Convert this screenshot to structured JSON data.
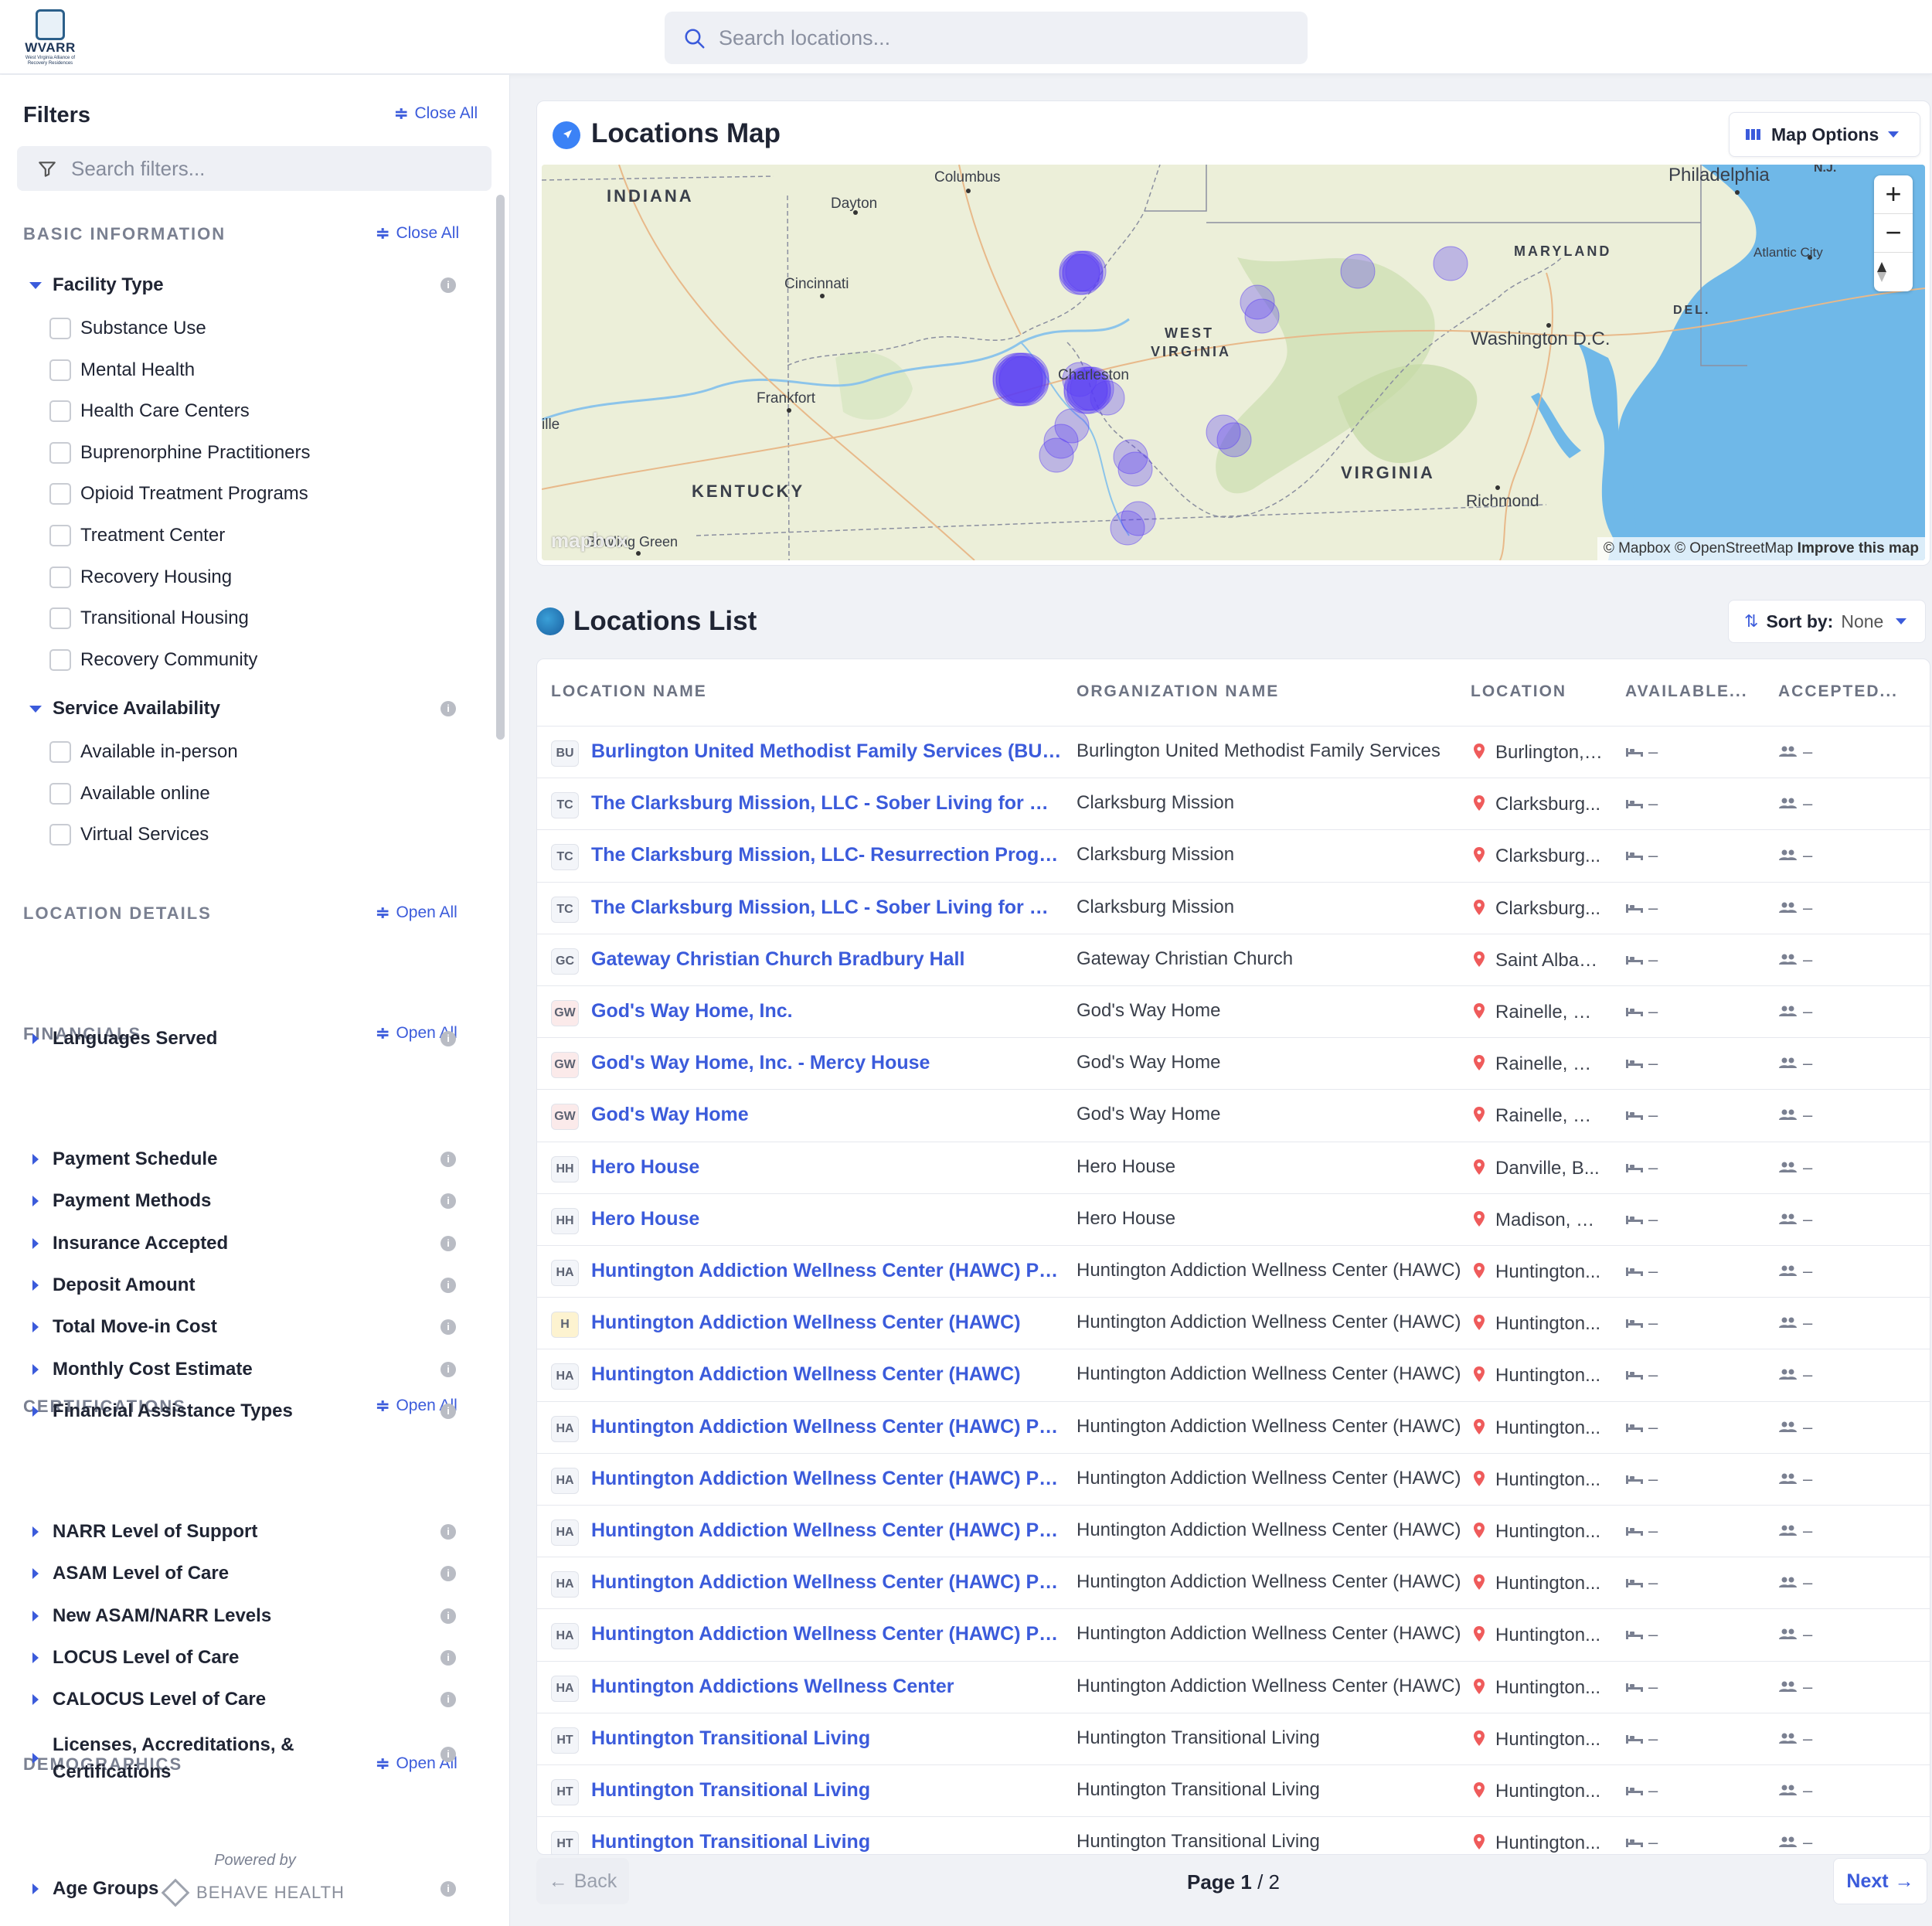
{
  "app": {
    "logo_text": "WVARR",
    "logo_subtext": "West Virginia Alliance of Recovery Residences"
  },
  "search": {
    "placeholder": "Search locations..."
  },
  "sidebar": {
    "title": "Filters",
    "close_all": "Close All",
    "filter_search_placeholder": "Search filters...",
    "sections": {
      "basic": {
        "label": "BASIC INFORMATION",
        "action": "Close All"
      },
      "location": {
        "label": "LOCATION DETAILS",
        "action": "Open All"
      },
      "financials": {
        "label": "FINANCIALS",
        "action": "Open All"
      },
      "certifications": {
        "label": "CERTIFICATIONS",
        "action": "Open All"
      },
      "demographics": {
        "label": "DEMOGRAPHICS",
        "action": "Open All"
      }
    },
    "facility_type": {
      "label": "Facility Type",
      "options": [
        "Substance Use",
        "Mental Health",
        "Health Care Centers",
        "Buprenorphine Practitioners",
        "Opioid Treatment Programs",
        "Treatment Center",
        "Recovery Housing",
        "Transitional Housing",
        "Recovery Community"
      ]
    },
    "service_availability": {
      "label": "Service Availability",
      "options": [
        "Available in-person",
        "Available online",
        "Virtual Services"
      ]
    },
    "location_groups": [
      "Languages Served"
    ],
    "financial_groups": [
      "Payment Schedule",
      "Payment Methods",
      "Insurance Accepted",
      "Deposit Amount",
      "Total Move-in Cost",
      "Monthly Cost Estimate",
      "Financial Assistance Types"
    ],
    "certification_groups": [
      "NARR Level of Support",
      "ASAM Level of Care",
      "New ASAM/NARR Levels",
      "LOCUS Level of Care",
      "CALOCUS Level of Care",
      "Licenses, Accreditations, & Certifications"
    ],
    "demographic_groups": [
      "Age Groups"
    ],
    "powered_by": "Powered by",
    "brand": "BEHAVE HEALTH"
  },
  "map": {
    "title": "Locations Map",
    "options_label": "Map Options",
    "zoom_in": "+",
    "zoom_out": "−",
    "attribution_1": "© Mapbox",
    "attribution_2": "© OpenStreetMap",
    "attribution_3": "Improve this map",
    "logo": "mapbox",
    "states": [
      "INDIANA",
      "KENTUCKY",
      "WEST",
      "VIRGINIA",
      "VIRGINIA",
      "MARYLAND",
      "DEL."
    ],
    "cities": [
      "Columbus",
      "Dayton",
      "Cincinnati",
      "Frankfort",
      "Charleston",
      "Philadelphia",
      "N.J.",
      "Atlantic City",
      "Washington D.C.",
      "Richmond",
      "Bowling Green",
      "ille"
    ],
    "marker_color": "#5b3df5"
  },
  "list": {
    "title": "Locations List",
    "sort_label": "Sort by:",
    "sort_value": "None",
    "columns": [
      "LOCATION NAME",
      "ORGANIZATION NAME",
      "LOCATION",
      "AVAILABLE...",
      "ACCEPTED..."
    ],
    "rows": [
      {
        "badge": "BU",
        "name": "Burlington United Methodist Family Services (BUMFS)",
        "org": "Burlington United Methodist Family Services",
        "city": "Burlington, ...",
        "available": "–",
        "accepted": "–"
      },
      {
        "badge": "TC",
        "name": "The Clarksburg Mission, LLC - Sober Living for Men",
        "org": "Clarksburg Mission",
        "city": "Clarksburg...",
        "available": "–",
        "accepted": "–"
      },
      {
        "badge": "TC",
        "name": "The Clarksburg Mission, LLC- Resurrection Program",
        "org": "Clarksburg Mission",
        "city": "Clarksburg...",
        "available": "–",
        "accepted": "–"
      },
      {
        "badge": "TC",
        "name": "The Clarksburg Mission, LLC - Sober Living for Women",
        "org": "Clarksburg Mission",
        "city": "Clarksburg...",
        "available": "–",
        "accepted": "–"
      },
      {
        "badge": "GC",
        "name": "Gateway Christian Church Bradbury Hall",
        "org": "Gateway Christian Church",
        "city": "Saint Alban...",
        "available": "–",
        "accepted": "–"
      },
      {
        "badge": "GW",
        "name": "God's Way Home, Inc.",
        "org": "God's Way Home",
        "city": "Rainelle, Gr...",
        "available": "–",
        "accepted": "–"
      },
      {
        "badge": "GW",
        "name": "God's Way Home, Inc. - Mercy House",
        "org": "God's Way Home",
        "city": "Rainelle, Gr...",
        "available": "–",
        "accepted": "–"
      },
      {
        "badge": "GW",
        "name": "God's Way Home",
        "org": "God's Way Home",
        "city": "Rainelle, Gr...",
        "available": "–",
        "accepted": "–"
      },
      {
        "badge": "HH",
        "name": "Hero House",
        "org": "Hero House",
        "city": "Danville, B...",
        "available": "–",
        "accepted": "–"
      },
      {
        "badge": "HH",
        "name": "Hero House",
        "org": "Hero House",
        "city": "Madison, B...",
        "available": "–",
        "accepted": "–"
      },
      {
        "badge": "HA",
        "name": "Huntington Addiction Wellness Center (HAWC) Program",
        "org": "Huntington Addiction Wellness Center (HAWC)",
        "city": "Huntington...",
        "available": "–",
        "accepted": "–"
      },
      {
        "badge": "H",
        "name": "Huntington Addiction Wellness Center (HAWC)",
        "org": "Huntington Addiction Wellness Center (HAWC)",
        "city": "Huntington...",
        "available": "–",
        "accepted": "–"
      },
      {
        "badge": "HA",
        "name": "Huntington Addiction Wellness Center (HAWC)",
        "org": "Huntington Addiction Wellness Center (HAWC)",
        "city": "Huntington...",
        "available": "–",
        "accepted": "–"
      },
      {
        "badge": "HA",
        "name": "Huntington Addiction Wellness Center (HAWC) Program",
        "org": "Huntington Addiction Wellness Center (HAWC)",
        "city": "Huntington...",
        "available": "–",
        "accepted": "–"
      },
      {
        "badge": "HA",
        "name": "Huntington Addiction Wellness Center (HAWC) Program",
        "org": "Huntington Addiction Wellness Center (HAWC)",
        "city": "Huntington...",
        "available": "–",
        "accepted": "–"
      },
      {
        "badge": "HA",
        "name": "Huntington Addiction Wellness Center (HAWC) Program",
        "org": "Huntington Addiction Wellness Center (HAWC)",
        "city": "Huntington...",
        "available": "–",
        "accepted": "–"
      },
      {
        "badge": "HA",
        "name": "Huntington Addiction Wellness Center (HAWC) Program",
        "org": "Huntington Addiction Wellness Center (HAWC)",
        "city": "Huntington...",
        "available": "–",
        "accepted": "–"
      },
      {
        "badge": "HA",
        "name": "Huntington Addiction Wellness Center (HAWC) Program",
        "org": "Huntington Addiction Wellness Center (HAWC)",
        "city": "Huntington...",
        "available": "–",
        "accepted": "–"
      },
      {
        "badge": "HA",
        "name": "Huntington Addictions Wellness Center",
        "org": "Huntington Addiction Wellness Center (HAWC)",
        "city": "Huntington...",
        "available": "–",
        "accepted": "–"
      },
      {
        "badge": "HT",
        "name": "Huntington Transitional Living",
        "org": "Huntington Transitional Living",
        "city": "Huntington...",
        "available": "–",
        "accepted": "–"
      },
      {
        "badge": "HT",
        "name": "Huntington Transitional Living",
        "org": "Huntington Transitional Living",
        "city": "Huntington...",
        "available": "–",
        "accepted": "–"
      },
      {
        "badge": "HT",
        "name": "Huntington Transitional Living",
        "org": "Huntington Transitional Living",
        "city": "Huntington...",
        "available": "–",
        "accepted": "–"
      }
    ]
  },
  "pagination": {
    "back": "Back",
    "page_word": "Page",
    "current": "1",
    "total": "/ 2",
    "next": "Next"
  }
}
